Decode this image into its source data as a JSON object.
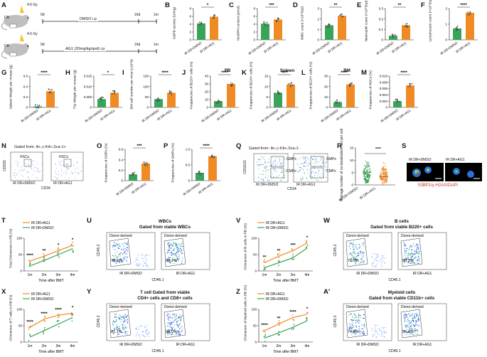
{
  "labels": {
    "A": "A",
    "B": "B",
    "C": "C",
    "D": "D",
    "E": "E",
    "F": "F",
    "G": "G",
    "H": "H",
    "I": "I",
    "J": "J",
    "K": "K",
    "L": "L",
    "M": "M",
    "N": "N",
    "O": "O",
    "P": "P",
    "Q": "Q",
    "R": "R",
    "S": "S",
    "T": "T",
    "U": "U",
    "V": "V",
    "W": "W",
    "X": "X",
    "Y": "Y",
    "Z": "Z",
    "A2": "A'"
  },
  "schema": {
    "gy": "4.6 Gy",
    "dr": "DR",
    "day0": "0d",
    "day16": "16d",
    "m1": "1m",
    "arm1": "DMSO i.p",
    "arm2": "AG1 (20mg/kg/qod) i.p"
  },
  "groups": {
    "ctrl": "IR DR+DMSO",
    "trt": "IR DR+AG1"
  },
  "colors": {
    "ctrl": "#3aa35a",
    "trt": "#f08a24"
  },
  "bars": [
    {
      "id": "B",
      "ylabel": "G6PD activity (U/mg)",
      "sig": "*",
      "ticks": [
        "0",
        "2",
        "4",
        "6",
        "8"
      ],
      "ymax": 8,
      "values": [
        4.2,
        5.9
      ]
    },
    {
      "id": "C",
      "ylabel": "NADPH content (pmol)",
      "sig": "***",
      "ticks": [
        "0",
        "2",
        "4",
        "6",
        "8"
      ],
      "ymax": 8,
      "values": [
        4.1,
        5.2
      ]
    },
    {
      "id": "D",
      "ylabel": "WBC count (×10^3/μl)",
      "sig": "**",
      "ticks": [
        "0",
        "1",
        "2",
        "3"
      ],
      "ymax": 3,
      "values": [
        1.4,
        2.3
      ]
    },
    {
      "id": "E",
      "ylabel": "Neutrophil count (×10^3/μl)",
      "sig": "**",
      "ticks": [
        "0",
        "0.1",
        "0.2",
        "0.3"
      ],
      "ymax": 0.3,
      "values": [
        0.04,
        0.14
      ]
    },
    {
      "id": "F",
      "ylabel": "Lymphocyte count (×10^3/μl)",
      "sig": "****",
      "ticks": [
        "0",
        "1",
        "2"
      ],
      "ymax": 2.2,
      "values": [
        0.8,
        1.9
      ]
    },
    {
      "id": "G",
      "ylabel": "Spleen Weight per mouse (g)",
      "sig": "****",
      "ticks": [
        "0",
        "0.2",
        "0.4",
        "0.6"
      ],
      "ymax": 0.6,
      "values": [
        0.02,
        0.31
      ]
    },
    {
      "id": "H",
      "ylabel": "Thy Weight per mouse (g)",
      "sig": "*",
      "ticks": [
        "0",
        "0.005",
        "0.010",
        "0.015"
      ],
      "ymax": 0.015,
      "values": [
        0.004,
        0.007
      ]
    },
    {
      "id": "I",
      "ylabel": "BM cell number per mice (x10^6)",
      "sig": "****",
      "ticks": [
        "0",
        "50",
        "100",
        "150"
      ],
      "ymax": 150,
      "values": [
        40,
        70
      ]
    },
    {
      "id": "J",
      "title": "PB",
      "ylabel": "Frequencies of B220+ cells (%)",
      "sig": "****",
      "ticks": [
        "0",
        "10",
        "20",
        "30",
        "40"
      ],
      "ymax": 40,
      "values": [
        8,
        30
      ]
    },
    {
      "id": "K",
      "title": "Spleen",
      "ylabel": "Frequencies of B220+ cells (%)",
      "sig": "****",
      "ticks": [
        "0",
        "5",
        "10",
        "15"
      ],
      "ymax": 15,
      "values": [
        7,
        11
      ]
    },
    {
      "id": "L",
      "title": "BM",
      "ylabel": "Frequencies of B220+ cells (%)",
      "sig": "****",
      "ticks": [
        "0",
        "10",
        "20",
        "30"
      ],
      "ymax": 30,
      "values": [
        5,
        22
      ]
    },
    {
      "id": "M",
      "ylabel": "Frequencies of HSCs (%)",
      "sig": "****",
      "ticks": [
        "0",
        "0.002",
        "0.004",
        "0.006",
        "0.008",
        "0.010"
      ],
      "ymax": 0.01,
      "values": [
        0.002,
        0.007
      ]
    },
    {
      "id": "O",
      "ylabel": "Frequencies of CMPs (%)",
      "sig": "***",
      "ticks": [
        "0",
        "0.2",
        "0.4",
        "0.6"
      ],
      "ymax": 0.6,
      "values": [
        0.12,
        0.33
      ]
    },
    {
      "id": "P",
      "ylabel": "Frequencies of GMPs (%)",
      "sig": "****",
      "ticks": [
        "0",
        "0.5",
        "1.0"
      ],
      "ymax": 1.0,
      "values": [
        0.25,
        0.78
      ]
    }
  ],
  "flowN": {
    "title": "Gated from: lin-,c-Kit+,Sca-1+",
    "gate": "HSCs",
    "ylab": "CD150",
    "xlab": "CD34"
  },
  "flowQ": {
    "title": "Gated from: lin-,c-Kit+,Sca-1-",
    "g1": "GMPs",
    "g2": "CMPs",
    "ylab": "CD16/32",
    "xlab": "CD34"
  },
  "panelR": {
    "ylabel": "Average number of co-localization foci per cell",
    "sig": "****",
    "ticks": [
      "0",
      "5",
      "10",
      "15"
    ]
  },
  "panelS": {
    "legend": "53BP1/γ-H2AX/DAPI"
  },
  "lines": [
    {
      "id": "T",
      "ylabel": "Total Chimerism in PB (%)",
      "sig": [
        "****",
        "**",
        "*",
        "*"
      ],
      "ticks": [
        "0",
        "50",
        "100"
      ],
      "x": [
        "1m",
        "2m",
        "3m",
        "4m"
      ],
      "xlabel": "Time after BMT",
      "trt": [
        30,
        45,
        62,
        78
      ],
      "ctrl": [
        15,
        32,
        50,
        68
      ]
    },
    {
      "id": "V",
      "ylabel": "Chimerism of B cells in PB (%)",
      "sig": [
        "**",
        "**",
        "***",
        "*"
      ],
      "ticks": [
        "0",
        "50",
        "100"
      ],
      "x": [
        "1m",
        "2m",
        "3m",
        "4m"
      ],
      "xlabel": "Time after BMT",
      "trt": [
        25,
        45,
        62,
        85
      ],
      "ctrl": [
        10,
        25,
        40,
        70
      ]
    },
    {
      "id": "X",
      "ylabel": "Chimerism of T cells in PB (%)",
      "sig": [
        "****",
        "****",
        "****",
        "*"
      ],
      "ticks": [
        "0",
        "50",
        "100"
      ],
      "x": [
        "1m",
        "2m",
        "3m",
        "4m"
      ],
      "xlabel": "Time after BMT",
      "trt": [
        45,
        70,
        82,
        88
      ],
      "ctrl": [
        15,
        35,
        55,
        75
      ]
    },
    {
      "id": "Z",
      "ylabel": "Chimerism of Myeloid cells in PB (%)",
      "sig": [
        "****",
        "**",
        "****",
        "*"
      ],
      "ticks": [
        "0",
        "50",
        "100"
      ],
      "x": [
        "1m",
        "2m",
        "3m",
        "4m"
      ],
      "xlabel": "Time after BMT",
      "trt": [
        35,
        55,
        75,
        85
      ],
      "ctrl": [
        12,
        28,
        45,
        65
      ]
    }
  ],
  "flowPanels": [
    {
      "id": "U",
      "t1": "WBCs",
      "t2": "Gated from viable WBCs",
      "gate": "Donor-derived",
      "v1": "78.2%",
      "v2": "94.1%",
      "ylab": "CD45.2",
      "xlab": "CD45.1"
    },
    {
      "id": "W",
      "t1": "B cells",
      "t2": "Gated from viable B220+ cells",
      "gate": "Donor-derived",
      "v1": "71.9%",
      "v2": "98.3%",
      "ylab": "CD45.2",
      "xlab": "CD45.1"
    },
    {
      "id": "Y",
      "t1": "T cell Gated from viable",
      "t2": "CD4+ cells and CD8+ cells",
      "gate": "Donor-derived",
      "v1": "81.1%",
      "v2": "94.0%",
      "ylab": "CD45.2",
      "xlab": "CD45.1"
    },
    {
      "id": "A2",
      "t1": "Myeloid cells",
      "t2": "Gated from viable CD11b+ cells",
      "gate": "Donor-derived",
      "v1": "74.9%",
      "v2": "96.4%",
      "ylab": "CD45.2",
      "xlab": "CD45.1"
    }
  ]
}
